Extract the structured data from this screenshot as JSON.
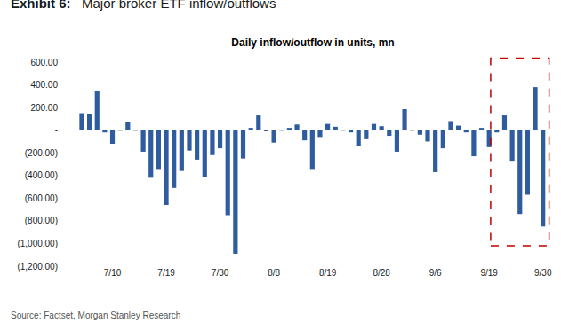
{
  "header": {
    "label": "Exhibit 6:",
    "title": "Major broker ETF inflow/outflows"
  },
  "source": "Source: Factset, Morgan Stanley Research",
  "chart_data": {
    "type": "bar",
    "title": "Daily inflow/outflow in units, mn",
    "color": "#2e5c9e",
    "grid": false,
    "categories": [
      null,
      null,
      null,
      null,
      "7/10",
      null,
      null,
      null,
      null,
      null,
      null,
      "7/19",
      null,
      null,
      null,
      null,
      null,
      null,
      "7/30",
      null,
      null,
      null,
      null,
      null,
      null,
      "8/8",
      null,
      null,
      null,
      null,
      null,
      null,
      "8/19",
      null,
      null,
      null,
      null,
      null,
      null,
      "8/28",
      null,
      null,
      null,
      null,
      null,
      null,
      "9/6",
      null,
      null,
      null,
      null,
      null,
      null,
      "9/19",
      null,
      null,
      null,
      null,
      null,
      null,
      "9/30"
    ],
    "values": [
      150,
      140,
      350,
      -20,
      -120,
      -5,
      75,
      -5,
      -190,
      -420,
      -350,
      -660,
      -510,
      -360,
      -180,
      -260,
      -410,
      -220,
      -160,
      -750,
      -1090,
      -250,
      20,
      130,
      -10,
      -110,
      -5,
      20,
      50,
      -90,
      -350,
      -60,
      55,
      30,
      -5,
      -20,
      -140,
      -80,
      55,
      35,
      -50,
      -190,
      185,
      -5,
      -40,
      -100,
      -370,
      -160,
      80,
      40,
      -20,
      -230,
      20,
      -150,
      -20,
      130,
      -270,
      -740,
      -570,
      380,
      -850
    ],
    "ylim": [
      -1200,
      600
    ],
    "yticks": [
      {
        "value": 600,
        "label": "600.00"
      },
      {
        "value": 400,
        "label": "400.00"
      },
      {
        "value": 200,
        "label": "200.00"
      },
      {
        "value": 0,
        "label": "-"
      },
      {
        "value": -200,
        "label": "(200.00)"
      },
      {
        "value": -400,
        "label": "(400.00)"
      },
      {
        "value": -600,
        "label": "(600.00)"
      },
      {
        "value": -800,
        "label": "(800.00)"
      },
      {
        "value": -1000,
        "label": "(1,000.00)"
      },
      {
        "value": -1200,
        "label": "(1,200.00)"
      }
    ],
    "highlight": {
      "start": 54,
      "end": 60,
      "color": "#c00000",
      "line_style": "dash"
    }
  }
}
